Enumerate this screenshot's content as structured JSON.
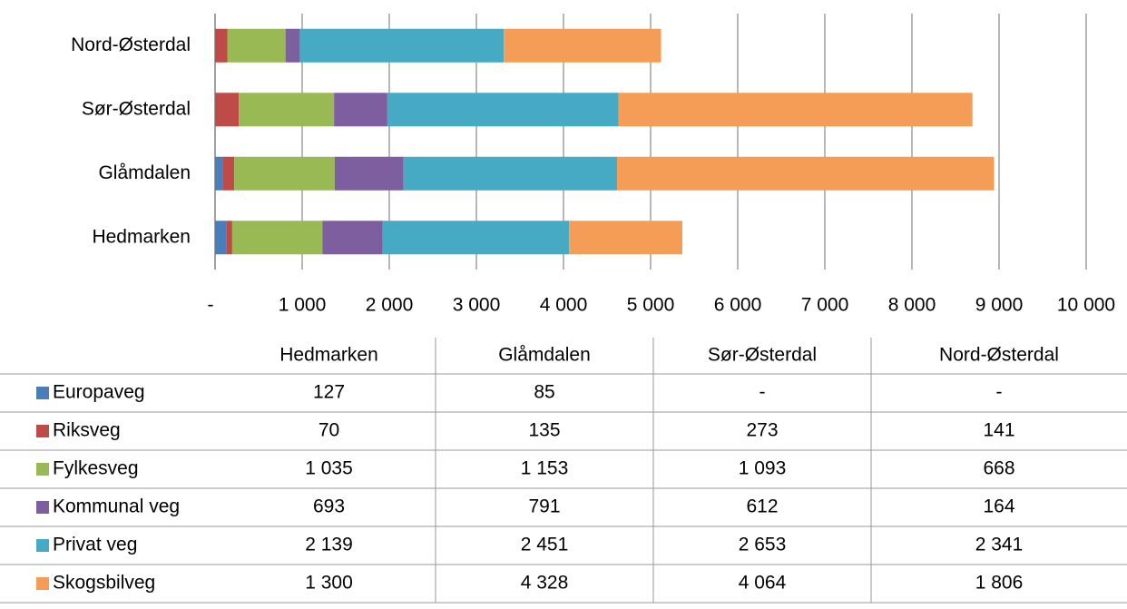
{
  "chart_data": {
    "type": "stacked-bar-horizontal",
    "categories": [
      "Hedmarken",
      "Glåmdalen",
      "Sør-Østerdal",
      "Nord-Østerdal"
    ],
    "series": [
      {
        "name": "Europaveg",
        "color": "#4a7ebb",
        "values": [
          127,
          85,
          0,
          0
        ],
        "value_labels": [
          "127",
          "85",
          "-",
          "-"
        ]
      },
      {
        "name": "Riksveg",
        "color": "#be4b48",
        "values": [
          70,
          135,
          273,
          141
        ],
        "value_labels": [
          "70",
          "135",
          "273",
          "141"
        ]
      },
      {
        "name": "Fylkesveg",
        "color": "#98b954",
        "values": [
          1035,
          1153,
          1093,
          668
        ],
        "value_labels": [
          "1 035",
          "1 153",
          "1 093",
          "668"
        ]
      },
      {
        "name": "Kommunal veg",
        "color": "#7d5fa0",
        "values": [
          693,
          791,
          612,
          164
        ],
        "value_labels": [
          "693",
          "791",
          "612",
          "164"
        ]
      },
      {
        "name": "Privat veg",
        "color": "#46aac5",
        "values": [
          2139,
          2451,
          2653,
          2341
        ],
        "value_labels": [
          "2 139",
          "2 451",
          "2 653",
          "2 341"
        ]
      },
      {
        "name": "Skogsbilveg",
        "color": "#f59d56",
        "values": [
          1300,
          4328,
          4064,
          1806
        ],
        "value_labels": [
          "1 300",
          "4 328",
          "4 064",
          "1 806"
        ]
      }
    ],
    "xlim": [
      0,
      10000
    ],
    "xticks": [
      {
        "value": 0,
        "label": "-"
      },
      {
        "value": 1000,
        "label": "1 000"
      },
      {
        "value": 2000,
        "label": "2 000"
      },
      {
        "value": 3000,
        "label": "3 000"
      },
      {
        "value": 4000,
        "label": "4 000"
      },
      {
        "value": 5000,
        "label": "5 000"
      },
      {
        "value": 6000,
        "label": "6 000"
      },
      {
        "value": 7000,
        "label": "7 000"
      },
      {
        "value": 8000,
        "label": "8 000"
      },
      {
        "value": 9000,
        "label": "9 000"
      },
      {
        "value": 10000,
        "label": "10 000"
      }
    ],
    "grid": true
  }
}
